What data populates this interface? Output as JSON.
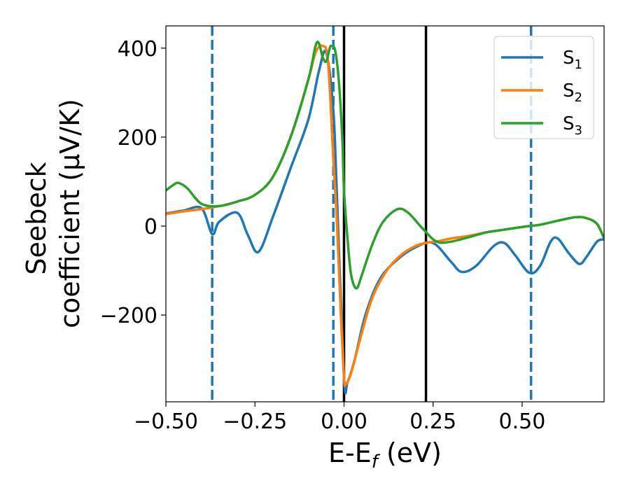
{
  "chart_data": {
    "type": "line",
    "xlabel": "E-E",
    "xlabel_sub": "f",
    "xlabel_unit": " (eV)",
    "ylabel_line1": "Seebeck",
    "ylabel_line2": "coefficient  (μV/K)",
    "xlim": [
      -0.5,
      0.73
    ],
    "ylim": [
      -395,
      450
    ],
    "xticks": [
      -0.5,
      -0.25,
      0.0,
      0.25,
      0.5
    ],
    "xtick_labels": [
      "−0.50",
      "−0.25",
      "0.00",
      "0.25",
      "0.50"
    ],
    "yticks": [
      -200,
      0,
      200,
      400
    ],
    "ytick_labels": [
      "−200",
      "0",
      "200",
      "400"
    ],
    "grid": false,
    "legend_position": "top-right",
    "vlines_solid": [
      0.0,
      0.23
    ],
    "vlines_dashed": [
      -0.37,
      -0.03,
      0.525
    ],
    "series": [
      {
        "name": "S",
        "name_sub": "1",
        "color": "#1f77b4",
        "x": [
          -0.5,
          -0.45,
          -0.4,
          -0.37,
          -0.35,
          -0.3,
          -0.27,
          -0.24,
          -0.2,
          -0.15,
          -0.1,
          -0.07,
          -0.05,
          -0.03,
          -0.02,
          0.0,
          0.01,
          0.03,
          0.06,
          0.1,
          0.15,
          0.2,
          0.25,
          0.3,
          0.33,
          0.37,
          0.42,
          0.45,
          0.48,
          0.52,
          0.55,
          0.58,
          0.6,
          0.63,
          0.66,
          0.68,
          0.71,
          0.73
        ],
        "y": [
          28,
          35,
          40,
          -18,
          10,
          30,
          -20,
          -58,
          20,
          130,
          240,
          350,
          390,
          260,
          70,
          -340,
          -350,
          -300,
          -200,
          -120,
          -75,
          -48,
          -38,
          -80,
          -103,
          -90,
          -45,
          -38,
          -65,
          -105,
          -90,
          -35,
          -28,
          -60,
          -85,
          -70,
          -35,
          -30
        ]
      },
      {
        "name": "S",
        "name_sub": "2",
        "color": "#ff7f0e",
        "x": [
          -0.5,
          -0.45,
          -0.4,
          -0.35,
          -0.3,
          -0.25,
          -0.2,
          -0.15,
          -0.1,
          -0.08,
          -0.06,
          -0.045,
          -0.03,
          -0.02,
          -0.01,
          0.0,
          0.005,
          0.02,
          0.05,
          0.08,
          0.12,
          0.16,
          0.2,
          0.23,
          0.27,
          0.3,
          0.35,
          0.4,
          0.45,
          0.5,
          0.55,
          0.6,
          0.65,
          0.68,
          0.71,
          0.73
        ],
        "y": [
          27,
          33,
          38,
          45,
          55,
          70,
          110,
          200,
          330,
          390,
          405,
          370,
          150,
          10,
          -180,
          -340,
          -355,
          -330,
          -240,
          -160,
          -100,
          -65,
          -45,
          -38,
          -33,
          -28,
          -22,
          -14,
          -8,
          -2,
          3,
          12,
          20,
          18,
          5,
          -28
        ]
      },
      {
        "name": "S",
        "name_sub": "3",
        "color": "#2ca02c",
        "x": [
          -0.5,
          -0.48,
          -0.465,
          -0.44,
          -0.4,
          -0.35,
          -0.3,
          -0.25,
          -0.2,
          -0.15,
          -0.1,
          -0.08,
          -0.07,
          -0.06,
          -0.05,
          -0.04,
          -0.035,
          -0.025,
          -0.015,
          -0.005,
          0.0,
          0.01,
          0.02,
          0.035,
          0.05,
          0.08,
          0.11,
          0.15,
          0.18,
          0.22,
          0.26,
          0.3,
          0.35,
          0.4,
          0.45,
          0.5,
          0.55,
          0.6,
          0.65,
          0.68,
          0.71,
          0.73
        ],
        "y": [
          80,
          92,
          97,
          85,
          50,
          45,
          55,
          70,
          110,
          200,
          330,
          405,
          410,
          380,
          370,
          400,
          405,
          395,
          330,
          200,
          80,
          -30,
          -110,
          -140,
          -110,
          -40,
          10,
          38,
          30,
          -5,
          -35,
          -35,
          -25,
          -14,
          -8,
          -2,
          3,
          12,
          20,
          18,
          5,
          -28
        ]
      }
    ]
  }
}
